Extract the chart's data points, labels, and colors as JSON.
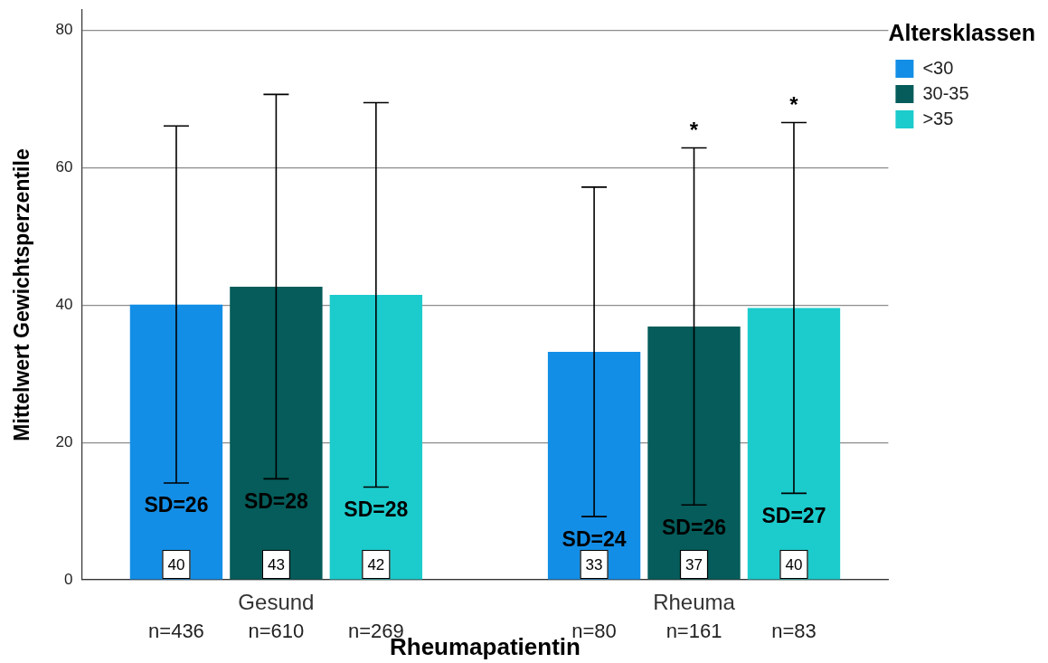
{
  "chart_data": {
    "type": "bar",
    "xlabel": "Rheumapatientin",
    "ylabel": "Mittelwert Gewichtsperzentile",
    "legend_title": "Altersklassen",
    "categories": [
      "Gesund",
      "Rheuma"
    ],
    "series": [
      {
        "name": "<30",
        "color": "#138ee6",
        "values": [
          40.1,
          33.2
        ],
        "errors": [
          26,
          24
        ],
        "value_labels": [
          "40",
          "33"
        ]
      },
      {
        "name": "30-35",
        "color": "#055c5a",
        "values": [
          42.7,
          36.9
        ],
        "errors": [
          28,
          26
        ],
        "value_labels": [
          "43",
          "37"
        ]
      },
      {
        "name": ">35",
        "color": "#1ccbcc",
        "values": [
          41.5,
          39.6
        ],
        "errors": [
          28,
          27
        ],
        "value_labels": [
          "42",
          "40"
        ]
      }
    ],
    "ylim": [
      0,
      83
    ],
    "yticks": [
      0,
      20,
      40,
      60,
      80
    ],
    "grid": "y",
    "legend": "top right",
    "annotations": [
      "SD=26",
      "SD=28",
      "SD=28",
      "SD=24",
      "SD=26",
      "SD=27",
      "n=436",
      "n=610",
      "n=269",
      "n=80",
      "n=161",
      "n=83",
      "*",
      "*"
    ]
  }
}
